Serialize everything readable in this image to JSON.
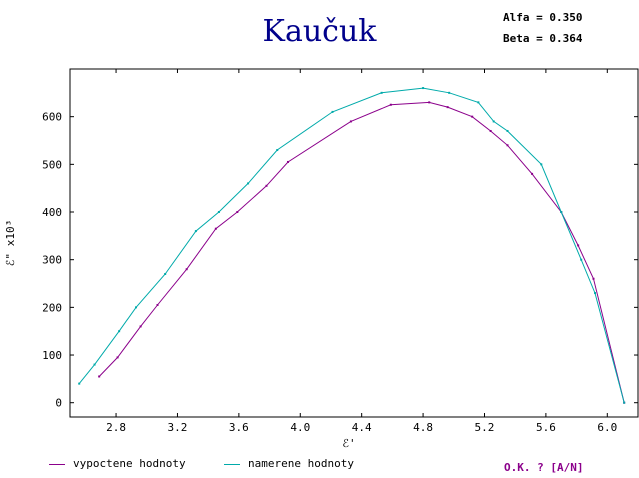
{
  "title": "Kaučuk",
  "params": {
    "alfa": "Alfa = 0.350",
    "beta": "Beta = 0.364"
  },
  "footer": {
    "prompt": "O.K. ? [A/N]"
  },
  "colors": {
    "calculated": "#8b008b",
    "measured": "#00aaaa",
    "axes": "#000000",
    "grid": "#ffffff"
  },
  "chart_data": {
    "type": "line",
    "title": "Kaučuk",
    "xlabel": "ℰ'",
    "ylabel": "ℰ\" x10³",
    "xlim": [
      2.5,
      6.2
    ],
    "ylim": [
      -30,
      700
    ],
    "xticks": [
      2.8,
      3.2,
      3.6,
      4.0,
      4.4,
      4.8,
      5.2,
      5.6,
      6.0
    ],
    "xtick_labels": [
      "2.8",
      "3.2",
      "3.6",
      "4.0",
      "4.4",
      "4.8",
      "5.2",
      "5.6",
      "6.0"
    ],
    "yticks": [
      0,
      100,
      200,
      300,
      400,
      500,
      600
    ],
    "ytick_labels": [
      "0",
      "100",
      "200",
      "300",
      "400",
      "500",
      "600"
    ],
    "grid": false,
    "legend_position": "bottom",
    "series": [
      {
        "name": "vypoctene hodnoty",
        "color": "#8b008b",
        "x": [
          2.69,
          2.81,
          2.96,
          3.07,
          3.26,
          3.45,
          3.59,
          3.78,
          3.92,
          4.33,
          4.59,
          4.84,
          4.96,
          5.12,
          5.24,
          5.35,
          5.51,
          5.7,
          5.81,
          5.91,
          6.11
        ],
        "y": [
          55,
          95,
          160,
          205,
          280,
          365,
          400,
          455,
          505,
          590,
          625,
          630,
          620,
          600,
          570,
          540,
          480,
          400,
          330,
          260,
          0
        ]
      },
      {
        "name": "namerene hodnoty",
        "color": "#00aaaa",
        "x": [
          2.56,
          2.66,
          2.82,
          2.93,
          3.12,
          3.32,
          3.47,
          3.66,
          3.85,
          4.21,
          4.53,
          4.8,
          4.97,
          5.16,
          5.26,
          5.35,
          5.57,
          5.7,
          5.83,
          5.92,
          6.11
        ],
        "y": [
          40,
          80,
          150,
          200,
          270,
          360,
          400,
          460,
          530,
          610,
          650,
          660,
          650,
          630,
          590,
          570,
          500,
          400,
          300,
          230,
          0
        ]
      }
    ]
  }
}
